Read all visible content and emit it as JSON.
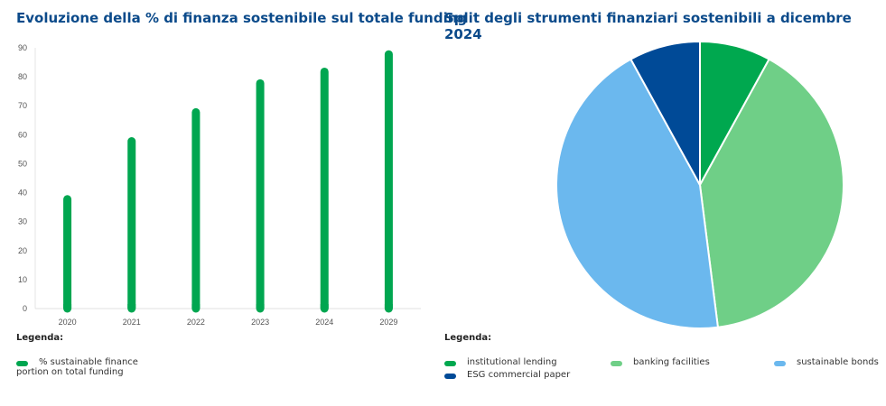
{
  "chart_data": [
    {
      "type": "bar",
      "title": "Evoluzione della % di finanza sostenibile sul totale funding",
      "categories": [
        "2020",
        "2021",
        "2022",
        "2023",
        "2024",
        "2029"
      ],
      "series": [
        {
          "name": "% sustainable finance portion on total funding",
          "values": [
            39,
            59,
            69,
            79,
            83,
            89
          ],
          "color": "#00a650"
        }
      ],
      "yticks": [
        0,
        10,
        20,
        30,
        40,
        50,
        60,
        70,
        80,
        90
      ],
      "ylim": [
        0,
        90
      ],
      "grid": false,
      "legend_title": "Legenda:",
      "legend_lines": [
        "% sustainable finance",
        "portion on total funding"
      ],
      "legend": "bottom-left"
    },
    {
      "type": "pie",
      "title": "Split degli strumenti finanziari sostenibili a dicembre 2024",
      "slices": [
        {
          "label": "institutional lending",
          "value": 8,
          "color": "#00a84f"
        },
        {
          "label": "banking facilities",
          "value": 40,
          "color": "#6fcf87"
        },
        {
          "label": "sustainable bonds",
          "value": 44,
          "color": "#6bb8ee"
        },
        {
          "label": "ESG commercial paper",
          "value": 8,
          "color": "#004a97"
        }
      ],
      "legend_title": "Legenda:",
      "legend": "bottom"
    }
  ]
}
